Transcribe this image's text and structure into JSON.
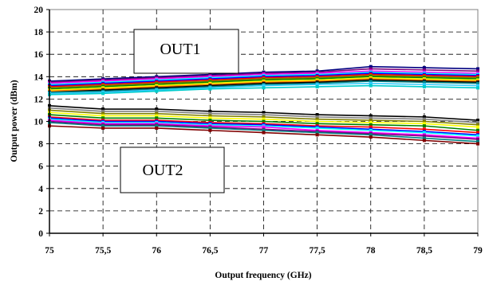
{
  "chart_data": {
    "type": "line",
    "xlabel": "Output frequency (GHz)",
    "ylabel": "Output power (dBm)",
    "xlim": [
      75,
      79
    ],
    "ylim": [
      0,
      20
    ],
    "grid": true,
    "x_ticks": [
      "75",
      "75,5",
      "76",
      "76,5",
      "77",
      "77,5",
      "78",
      "78,5",
      "79"
    ],
    "y_ticks": [
      "0",
      "2",
      "4",
      "6",
      "8",
      "10",
      "12",
      "14",
      "16",
      "18",
      "20"
    ],
    "annotations": [
      {
        "text": "OUT1"
      },
      {
        "text": "OUT2"
      }
    ],
    "x": [
      75,
      75.5,
      76,
      76.5,
      77,
      77.5,
      78,
      78.5,
      79
    ],
    "series": [
      {
        "group": "OUT1",
        "color": "#000080",
        "values": [
          13.6,
          13.8,
          14.0,
          14.2,
          14.4,
          14.5,
          14.9,
          14.8,
          14.7
        ]
      },
      {
        "group": "OUT1",
        "color": "#800080",
        "values": [
          13.5,
          13.7,
          13.9,
          14.1,
          14.3,
          14.4,
          14.7,
          14.6,
          14.5
        ]
      },
      {
        "group": "OUT1",
        "color": "#ff00ff",
        "values": [
          13.4,
          13.6,
          13.8,
          14.0,
          14.2,
          14.3,
          14.5,
          14.4,
          14.3
        ]
      },
      {
        "group": "OUT1",
        "color": "#00ffff",
        "values": [
          13.3,
          13.5,
          13.7,
          13.9,
          14.1,
          14.2,
          14.4,
          14.3,
          14.2
        ]
      },
      {
        "group": "OUT1",
        "color": "#0000ff",
        "values": [
          13.2,
          13.4,
          13.6,
          13.8,
          14.0,
          14.1,
          14.3,
          14.2,
          14.1
        ]
      },
      {
        "group": "OUT1",
        "color": "#ff0000",
        "values": [
          13.1,
          13.3,
          13.5,
          13.7,
          13.9,
          14.0,
          14.2,
          14.1,
          14.0
        ]
      },
      {
        "group": "OUT1",
        "color": "#808000",
        "values": [
          13.0,
          13.2,
          13.4,
          13.6,
          13.8,
          13.9,
          14.1,
          14.0,
          13.9
        ]
      },
      {
        "group": "OUT1",
        "color": "#008000",
        "values": [
          12.9,
          13.1,
          13.3,
          13.5,
          13.7,
          13.8,
          14.0,
          13.9,
          13.8
        ]
      },
      {
        "group": "OUT1",
        "color": "#ffff00",
        "values": [
          12.8,
          13.0,
          13.2,
          13.4,
          13.6,
          13.7,
          13.9,
          13.8,
          13.7
        ]
      },
      {
        "group": "OUT1",
        "color": "#ff8000",
        "values": [
          12.7,
          12.9,
          13.1,
          13.3,
          13.5,
          13.6,
          13.8,
          13.7,
          13.6
        ]
      },
      {
        "group": "OUT1",
        "color": "#000000",
        "values": [
          12.6,
          12.8,
          13.0,
          13.2,
          13.4,
          13.5,
          13.7,
          13.6,
          13.5
        ]
      },
      {
        "group": "OUT1",
        "color": "#008080",
        "values": [
          12.6,
          12.7,
          12.9,
          13.1,
          13.3,
          13.4,
          13.6,
          13.5,
          13.4
        ]
      },
      {
        "group": "OUT1",
        "color": "#33ccff",
        "values": [
          12.5,
          12.6,
          12.8,
          13.0,
          13.2,
          13.3,
          13.4,
          13.3,
          13.2
        ]
      },
      {
        "group": "OUT1",
        "color": "#00cccc",
        "values": [
          12.4,
          12.5,
          12.7,
          12.9,
          13.0,
          13.1,
          13.2,
          13.1,
          13.0
        ]
      },
      {
        "group": "OUT2",
        "color": "#000000",
        "values": [
          11.4,
          11.1,
          11.1,
          10.9,
          10.8,
          10.6,
          10.5,
          10.4,
          10.1
        ]
      },
      {
        "group": "OUT2",
        "color": "#808080",
        "values": [
          11.2,
          10.9,
          10.9,
          10.7,
          10.6,
          10.4,
          10.3,
          10.2,
          9.9
        ]
      },
      {
        "group": "OUT2",
        "color": "#808000",
        "values": [
          11.0,
          10.7,
          10.7,
          10.5,
          10.4,
          10.2,
          10.1,
          10.0,
          9.7
        ]
      },
      {
        "group": "OUT2",
        "color": "#ffff00",
        "values": [
          10.8,
          10.5,
          10.5,
          10.3,
          10.2,
          10.0,
          9.9,
          9.8,
          9.5
        ]
      },
      {
        "group": "OUT2",
        "color": "#008000",
        "values": [
          10.6,
          10.3,
          10.3,
          10.1,
          10.0,
          9.8,
          9.7,
          9.6,
          9.2
        ]
      },
      {
        "group": "OUT2",
        "color": "#ff0000",
        "values": [
          10.4,
          10.1,
          10.1,
          9.9,
          9.8,
          9.6,
          9.5,
          9.3,
          9.0
        ]
      },
      {
        "group": "OUT2",
        "color": "#0000ff",
        "values": [
          10.3,
          10.0,
          10.0,
          9.8,
          9.7,
          9.5,
          9.3,
          9.1,
          8.8
        ]
      },
      {
        "group": "OUT2",
        "color": "#00ffff",
        "values": [
          10.2,
          9.9,
          9.9,
          9.7,
          9.6,
          9.4,
          9.2,
          9.0,
          8.7
        ]
      },
      {
        "group": "OUT2",
        "color": "#ff00ff",
        "values": [
          10.1,
          9.8,
          9.8,
          9.6,
          9.5,
          9.2,
          9.0,
          8.8,
          8.5
        ]
      },
      {
        "group": "OUT2",
        "color": "#800080",
        "values": [
          10.0,
          9.7,
          9.7,
          9.5,
          9.3,
          9.1,
          8.9,
          8.7,
          8.4
        ]
      },
      {
        "group": "OUT2",
        "color": "#008080",
        "values": [
          9.9,
          9.6,
          9.6,
          9.4,
          9.2,
          9.0,
          8.8,
          8.5,
          8.2
        ]
      },
      {
        "group": "OUT2",
        "color": "#800000",
        "values": [
          9.6,
          9.4,
          9.4,
          9.2,
          9.0,
          8.8,
          8.6,
          8.3,
          8.0
        ]
      }
    ]
  }
}
